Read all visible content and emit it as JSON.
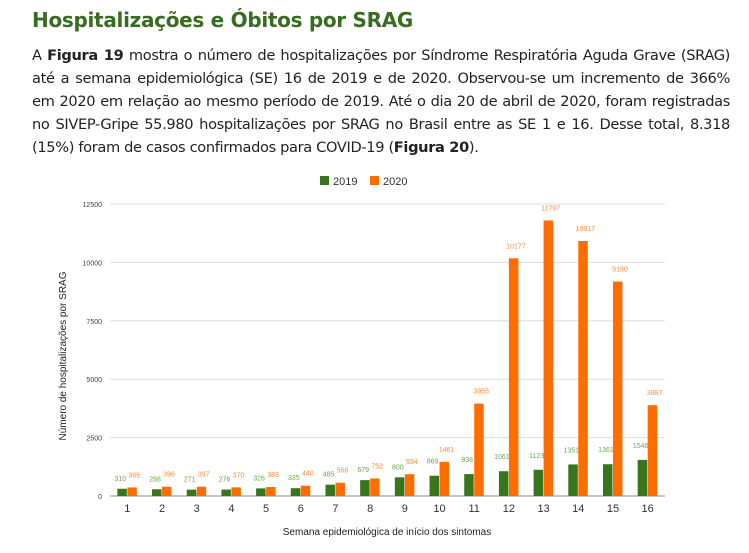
{
  "heading": "Hospitalizações e Óbitos por SRAG",
  "paragraph": {
    "t1": "A ",
    "b1": "Figura 19",
    "t2": " mostra o número de hospitalizações por Síndrome Respiratória Aguda Grave (SRAG) até a semana epidemiológica (SE) 16 de 2019 e de 2020. Observou-se um incremento de 366% em 2020 em relação ao mesmo período de 2019. Até o dia 20 de abril de 2020, foram registradas no SIVEP-Gripe 55.980 hospitalizações por SRAG no Brasil entre as SE 1 e 16. Desse total, 8.318 (15%) foram de casos confirmados para COVID-19 (",
    "b2": "Figura 20",
    "t3": ")."
  },
  "chart_data": {
    "type": "bar",
    "title": "",
    "xlabel": "Semana epidemiológica de início dos sintomas",
    "ylabel": "Número de hospitalizações por SRAG",
    "ylim": [
      0,
      12500
    ],
    "yticks": [
      0,
      2500,
      5000,
      7500,
      10000,
      12500
    ],
    "grid": true,
    "legend": "top-center",
    "categories": [
      "1",
      "2",
      "3",
      "4",
      "5",
      "6",
      "7",
      "8",
      "9",
      "10",
      "11",
      "12",
      "13",
      "14",
      "15",
      "16"
    ],
    "series": [
      {
        "name": "2019",
        "color": "#38761d",
        "label_color": "#6aa84f",
        "values": [
          310,
          288,
          271,
          276,
          326,
          335,
          485,
          679,
          800,
          869,
          938,
          1061,
          1123,
          1351,
          1361,
          1546
        ]
      },
      {
        "name": "2020",
        "color": "#ff6d01",
        "label_color": "#ff8c3a",
        "values": [
          366,
          396,
          397,
          370,
          383,
          440,
          568,
          752,
          934,
          1461,
          3955,
          10177,
          11797,
          10917,
          9180,
          3887
        ]
      }
    ]
  }
}
